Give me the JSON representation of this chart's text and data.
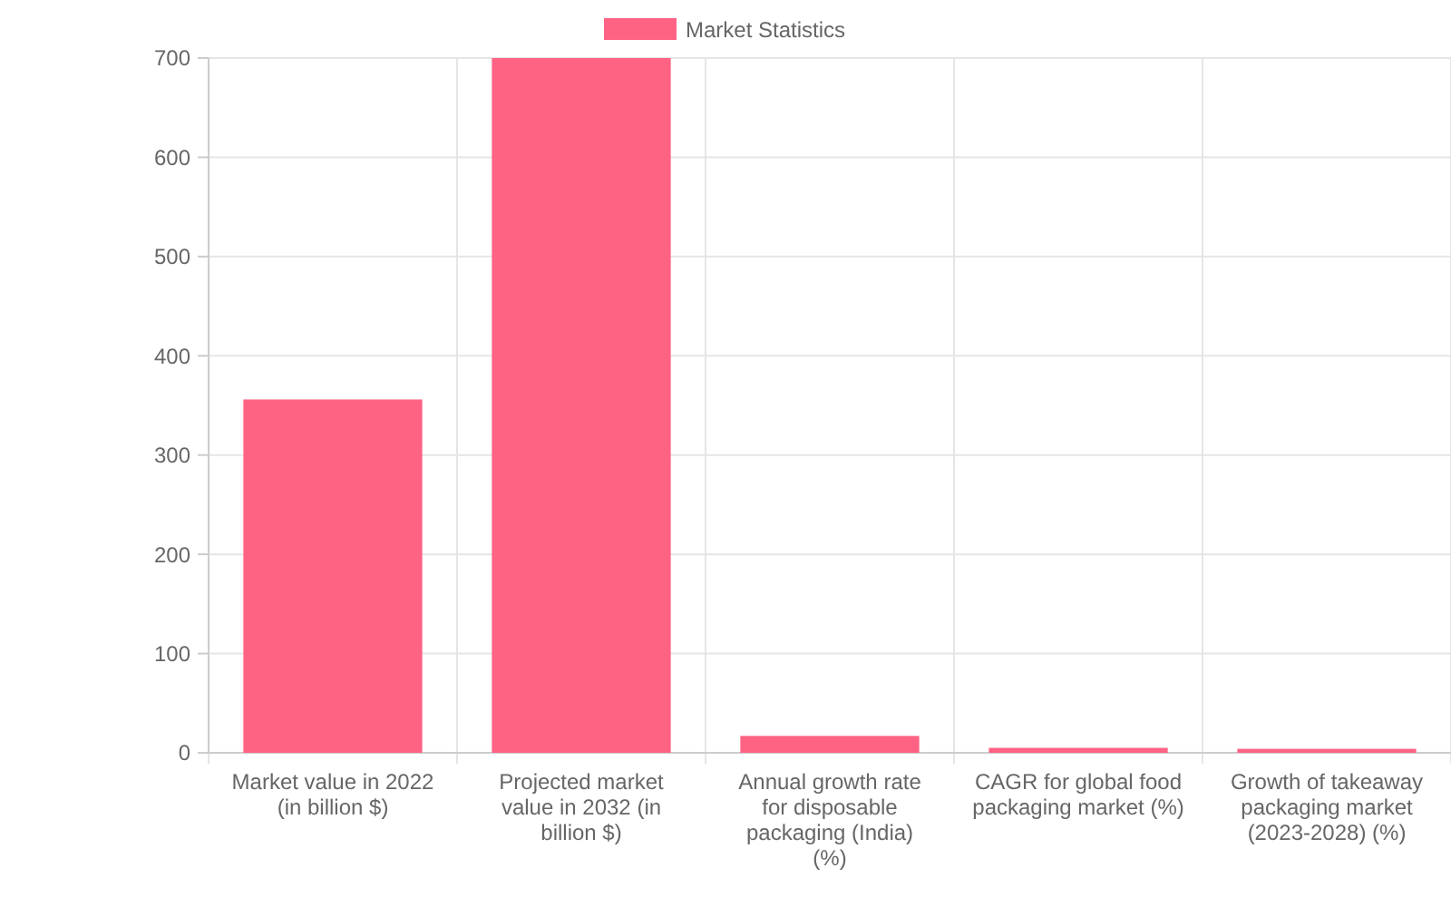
{
  "chart_data": {
    "type": "bar",
    "categories": [
      "Market value in 2022 (in billion $)",
      "Projected market value in 2032 (in billion $)",
      "Annual growth rate for disposable packaging (India) (%)",
      "CAGR for global food packaging market (%)",
      "Growth of takeaway packaging market (2023-2028) (%)"
    ],
    "series": [
      {
        "name": "Market Statistics",
        "color": "#ff6384",
        "values": [
          356,
          700,
          17,
          5,
          4
        ]
      }
    ],
    "ylim": [
      0,
      700
    ],
    "yticks": [
      0,
      100,
      200,
      300,
      400,
      500,
      600,
      700
    ],
    "grid": true,
    "legend": "top"
  }
}
